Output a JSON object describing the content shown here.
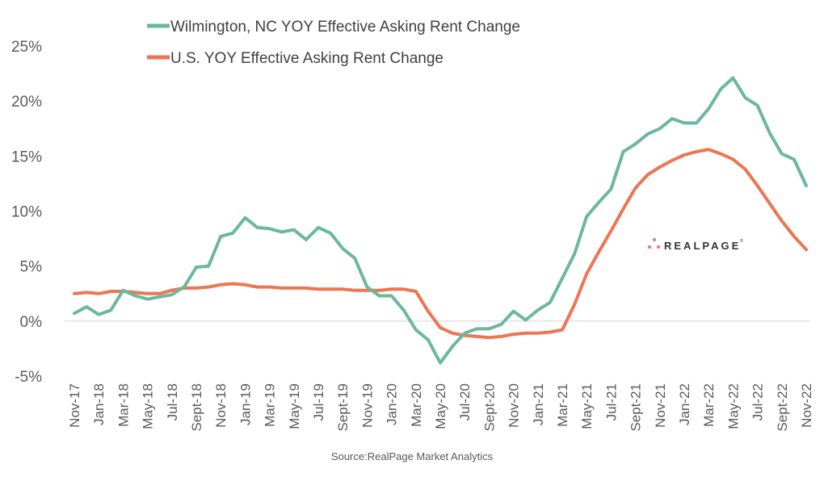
{
  "chart_data": {
    "type": "line",
    "title": "",
    "xlabel": "",
    "ylabel": "",
    "ylim": [
      -5,
      25
    ],
    "yticks": [
      -5,
      0,
      5,
      10,
      15,
      20,
      25
    ],
    "ytick_labels": [
      "-5%",
      "0%",
      "5%",
      "10%",
      "15%",
      "20%",
      "25%"
    ],
    "grid": false,
    "zero_line": true,
    "legend_position": "top-center",
    "x": [
      "Nov-17",
      "Dec-17",
      "Jan-18",
      "Feb-18",
      "Mar-18",
      "Apr-18",
      "May-18",
      "Jun-18",
      "Jul-18",
      "Aug-18",
      "Sept-18",
      "Oct-18",
      "Nov-18",
      "Dec-18",
      "Jan-19",
      "Feb-19",
      "Mar-19",
      "Apr-19",
      "May-19",
      "Jun-19",
      "Jul-19",
      "Aug-19",
      "Sept-19",
      "Oct-19",
      "Nov-19",
      "Dec-19",
      "Jan-20",
      "Feb-20",
      "Mar-20",
      "Apr-20",
      "May-20",
      "Jun-20",
      "Jul-20",
      "Aug-20",
      "Sept-20",
      "Oct-20",
      "Nov-20",
      "Dec-20",
      "Jan-21",
      "Feb-21",
      "Mar-21",
      "Apr-21",
      "May-21",
      "Jun-21",
      "Jul-21",
      "Aug-21",
      "Sept-21",
      "Oct-21",
      "Nov-21",
      "Dec-21",
      "Jan-22",
      "Feb-22",
      "Mar-22",
      "Apr-22",
      "May-22",
      "Jun-22",
      "Jul-22",
      "Aug-22",
      "Sept-22",
      "Oct-22",
      "Nov-22"
    ],
    "xtick_labels": [
      "Nov-17",
      "Jan-18",
      "Mar-18",
      "May-18",
      "Jul-18",
      "Sept-18",
      "Nov-18",
      "Jan-19",
      "Mar-19",
      "May-19",
      "Jul-19",
      "Sept-19",
      "Nov-19",
      "Jan-20",
      "Mar-20",
      "May-20",
      "Jul-20",
      "Sept-20",
      "Nov-20",
      "Jan-21",
      "Mar-21",
      "May-21",
      "Jul-21",
      "Sept-21",
      "Nov-21",
      "Jan-22",
      "Mar-22",
      "May-22",
      "Jul-22",
      "Sept-22",
      "Nov-22"
    ],
    "series": [
      {
        "name": "Wilmington, NC YOY Effective Asking Rent Change",
        "color": "#6bb89c",
        "values": [
          0.7,
          1.3,
          0.6,
          1.0,
          2.8,
          2.3,
          2.0,
          2.2,
          2.4,
          3.1,
          4.9,
          5.0,
          7.7,
          8.0,
          9.4,
          8.5,
          8.4,
          8.1,
          8.3,
          7.4,
          8.5,
          8.0,
          6.6,
          5.7,
          3.1,
          2.3,
          2.3,
          1.0,
          -0.8,
          -1.7,
          -3.8,
          -2.3,
          -1.1,
          -0.7,
          -0.7,
          -0.3,
          0.9,
          0.1,
          1.0,
          1.7,
          3.9,
          6.1,
          9.5,
          10.8,
          12.0,
          15.4,
          16.1,
          17.0,
          17.5,
          18.4,
          18.0,
          18.0,
          19.3,
          21.1,
          22.1,
          20.3,
          19.6,
          17.1,
          15.2,
          14.7,
          12.3
        ]
      },
      {
        "name": "U.S. YOY Effective Asking Rent Change",
        "color": "#ee7553",
        "values": [
          2.5,
          2.6,
          2.5,
          2.7,
          2.7,
          2.6,
          2.5,
          2.5,
          2.8,
          3.0,
          3.0,
          3.1,
          3.3,
          3.4,
          3.3,
          3.1,
          3.1,
          3.0,
          3.0,
          3.0,
          2.9,
          2.9,
          2.9,
          2.8,
          2.8,
          2.8,
          2.9,
          2.9,
          2.7,
          0.9,
          -0.6,
          -1.1,
          -1.3,
          -1.4,
          -1.5,
          -1.4,
          -1.2,
          -1.1,
          -1.1,
          -1.0,
          -0.8,
          1.5,
          4.3,
          6.3,
          8.2,
          10.2,
          12.1,
          13.3,
          14.0,
          14.6,
          15.1,
          15.4,
          15.6,
          15.2,
          14.7,
          13.8,
          12.3,
          10.7,
          9.1,
          7.7,
          6.5
        ]
      }
    ],
    "source": "Source:RealPage Market Analytics",
    "logo_text": "REALPAGE",
    "tm": "®"
  }
}
